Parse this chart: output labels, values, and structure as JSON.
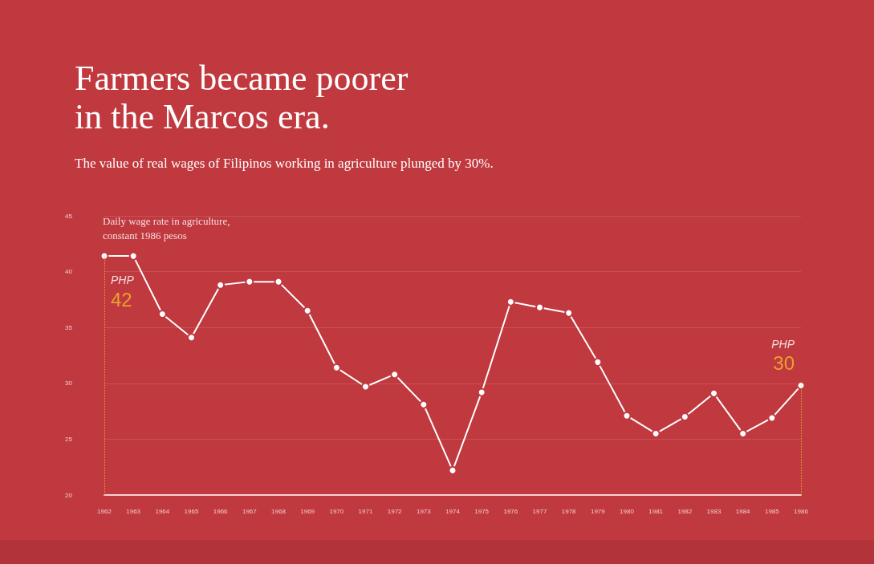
{
  "chart_data": {
    "type": "line",
    "title": "Farmers became poorer in the Marcos era.",
    "subtitle": "The value of real wages of Filipinos working in agriculture plunged by 30%.",
    "ylabel": "Daily wage rate in agriculture, constant 1986 pesos",
    "x": [
      1962,
      1963,
      1964,
      1965,
      1966,
      1967,
      1968,
      1969,
      1970,
      1971,
      1972,
      1973,
      1974,
      1975,
      1976,
      1977,
      1978,
      1979,
      1980,
      1981,
      1982,
      1983,
      1984,
      1985,
      1986
    ],
    "series": [
      {
        "color": "#ffffff",
        "values": [
          41.4,
          41.4,
          36.2,
          34.1,
          38.8,
          39.1,
          39.1,
          36.5,
          31.4,
          29.7,
          30.8,
          28.1,
          22.2,
          29.2,
          37.3,
          36.8,
          36.3,
          31.9,
          27.1,
          25.5,
          27.0,
          29.1,
          25.5,
          26.9,
          29.8
        ]
      }
    ],
    "xlim": [
      1962,
      1986
    ],
    "xticks": [
      1962,
      1963,
      1964,
      1965,
      1966,
      1967,
      1968,
      1969,
      1970,
      1971,
      1972,
      1973,
      1974,
      1975,
      1976,
      1977,
      1978,
      1979,
      1980,
      1981,
      1982,
      1983,
      1984,
      1985,
      1986
    ],
    "ylim": [
      20,
      45
    ],
    "yticks": [
      20,
      25,
      30,
      35,
      40,
      45
    ],
    "grid": "y",
    "marker": "circle",
    "line_style": "solid",
    "ref_lines": [
      {
        "axis": "x",
        "value": 1962,
        "label": "PHP 42",
        "color": "#e8a030",
        "line_style": "dotted"
      },
      {
        "axis": "x",
        "value": 1986,
        "label": "PHP 30",
        "color": "#e8a030",
        "line_style": "dotted"
      }
    ]
  }
}
